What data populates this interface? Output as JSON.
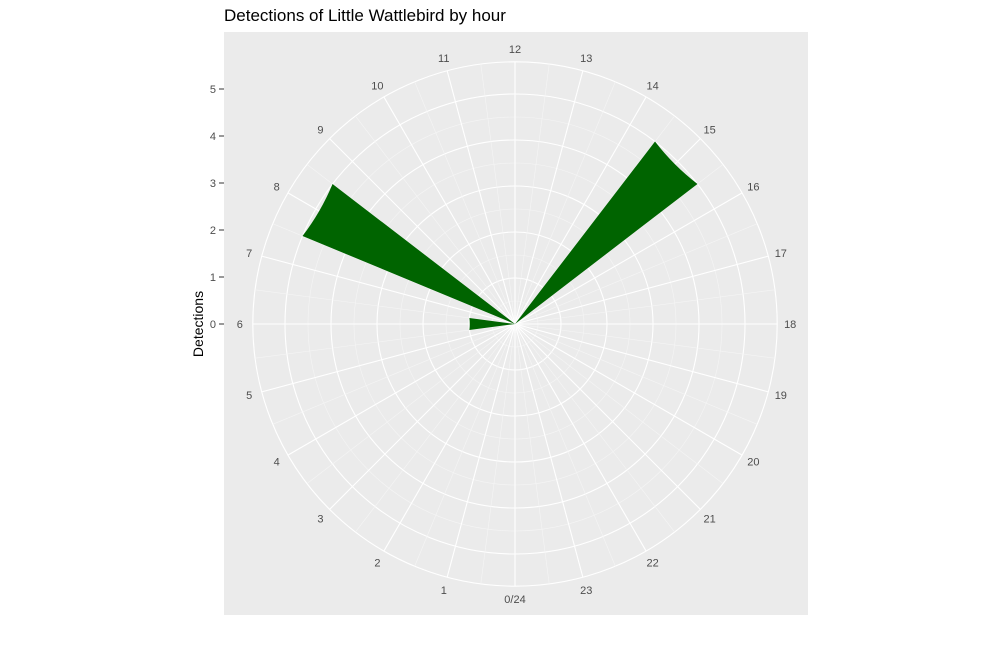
{
  "chart_data": {
    "type": "bar",
    "coord": "polar",
    "title": "Detections of Little Wattlebird by hour",
    "xlabel": "",
    "ylabel": "Detections",
    "x_ticks": [
      "0/24",
      "1",
      "2",
      "3",
      "4",
      "5",
      "6",
      "7",
      "8",
      "9",
      "10",
      "11",
      "12",
      "13",
      "14",
      "15",
      "16",
      "17",
      "18",
      "19",
      "20",
      "21",
      "22",
      "23"
    ],
    "y_ticks": [
      "0",
      "1",
      "2",
      "3",
      "4",
      "5"
    ],
    "ylim": [
      0,
      5
    ],
    "grid": true,
    "legend": "none",
    "bar_color": "#006400",
    "panel_color": "#EBEBEB",
    "bars": [
      {
        "hour": 6,
        "value": 1
      },
      {
        "hour": 8,
        "value": 5
      },
      {
        "hour": 15,
        "value": 5
      }
    ]
  }
}
